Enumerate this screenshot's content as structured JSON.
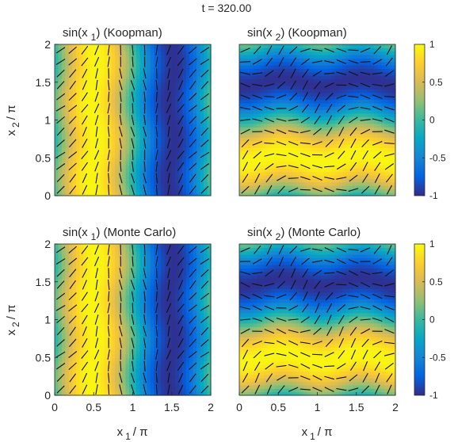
{
  "figure": {
    "title": "t = 320.00",
    "x_axis_label_base": "x",
    "x_axis_label_sub": "1",
    "x_axis_label_tail": "/ π",
    "y_axis_label_base": "x",
    "y_axis_label_sub": "2",
    "y_axis_label_tail": "/ π"
  },
  "colormap": "parula",
  "colorbar": {
    "ticks": [
      -1,
      -0.5,
      0,
      0.5,
      1
    ],
    "tick_labels": [
      "-1",
      "-0.5",
      "0",
      "0.5",
      "1"
    ],
    "range": [
      -1,
      1
    ]
  },
  "chart_data": [
    {
      "type": "heatmap",
      "title_parts": [
        "sin(x",
        "1",
        ") (Koopman)"
      ],
      "field": "sin(x1)",
      "xlim": [
        0,
        2
      ],
      "ylim": [
        0,
        2
      ],
      "x_ticks": [],
      "x_tick_labels": [],
      "y_ticks": [
        0,
        0.5,
        1,
        1.5,
        2
      ],
      "y_tick_labels": [
        "0",
        "0.5",
        "1",
        "1.5",
        "2"
      ],
      "overlay": "direction field (short line segments)"
    },
    {
      "type": "heatmap",
      "title_parts": [
        "sin(x",
        "2",
        ") (Koopman)"
      ],
      "field": "sin(x2)",
      "xlim": [
        0,
        2
      ],
      "ylim": [
        0,
        2
      ],
      "x_ticks": [],
      "x_tick_labels": [],
      "y_ticks": [],
      "y_tick_labels": [],
      "overlay": "direction field (short line segments)"
    },
    {
      "type": "heatmap",
      "title_parts": [
        "sin(x",
        "1",
        ") (Monte Carlo)"
      ],
      "field": "sin(x1)",
      "xlim": [
        0,
        2
      ],
      "ylim": [
        0,
        2
      ],
      "x_ticks": [
        0,
        0.5,
        1,
        1.5,
        2
      ],
      "x_tick_labels": [
        "0",
        "0.5",
        "1",
        "1.5",
        "2"
      ],
      "y_ticks": [
        0,
        0.5,
        1,
        1.5,
        2
      ],
      "y_tick_labels": [
        "0",
        "0.5",
        "1",
        "1.5",
        "2"
      ],
      "overlay": "direction field (short line segments)"
    },
    {
      "type": "heatmap",
      "title_parts": [
        "sin(x",
        "2",
        ") (Monte Carlo)"
      ],
      "field": "sin(x2)",
      "xlim": [
        0,
        2
      ],
      "ylim": [
        0,
        2
      ],
      "x_ticks": [
        0,
        0.5,
        1,
        1.5,
        2
      ],
      "x_tick_labels": [
        "0",
        "0.5",
        "1",
        "1.5",
        "2"
      ],
      "y_ticks": [],
      "y_tick_labels": [],
      "overlay": "direction field (short line segments)"
    }
  ]
}
